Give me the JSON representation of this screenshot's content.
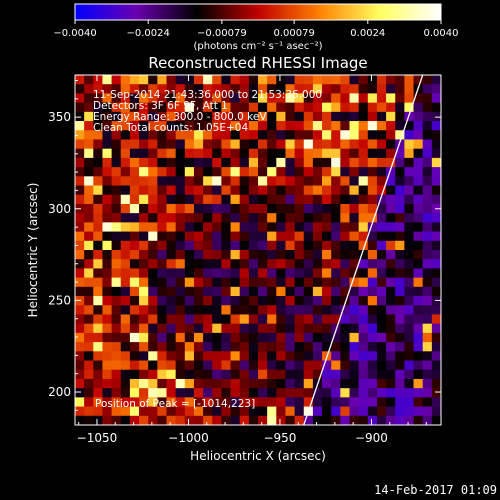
{
  "chart_data": {
    "type": "heatmap",
    "title": "Reconstructed RHESSI Image",
    "xlabel": "Heliocentric X (arcsec)",
    "ylabel": "Heliocentric Y (arcsec)",
    "xlim": [
      -1062,
      -862
    ],
    "ylim": [
      182,
      373
    ],
    "xticks": [
      -1050,
      -1000,
      -950,
      -900
    ],
    "xtick_labels": [
      "−1050",
      "−1000",
      "−950",
      "−900"
    ],
    "yticks": [
      200,
      250,
      300,
      350
    ],
    "ytick_labels": [
      "200",
      "250",
      "300",
      "350"
    ],
    "grid": false,
    "colorbar": {
      "position": "top",
      "range": [
        -0.004,
        0.004
      ],
      "ticks": [
        -0.004,
        -0.0024,
        -0.00079,
        0.00079,
        0.0024,
        0.004
      ],
      "tick_labels": [
        "−0.0040",
        "−0.0024",
        "−0.00079",
        "0.00079",
        "0.0024",
        "0.0040"
      ],
      "unit_label": "(photons cm⁻² s⁻¹ asec⁻²)",
      "colormap": [
        "#0000ff",
        "#6a00b0",
        "#000000",
        "#c00000",
        "#ff8000",
        "#ffff60",
        "#ffffff"
      ]
    },
    "annotations": [
      "11-Sep-2014 21:43:36.000 to 21:53:36.000",
      "Detectors: 3F 6F 9F, Att 1",
      "Energy Range: 300.0 - 800.0 keV",
      "Clean    Total counts: 1.05E+04"
    ],
    "peak_label": "Position of Peak = [-1014,223]",
    "limb_line": {
      "x": [
        -937,
        -872
      ],
      "y": [
        182,
        373
      ]
    },
    "pixel_grid": {
      "cols": 40,
      "rows": 38,
      "seed": 7
    }
  },
  "footer": {
    "date": "14-Feb-2017 01:09"
  }
}
